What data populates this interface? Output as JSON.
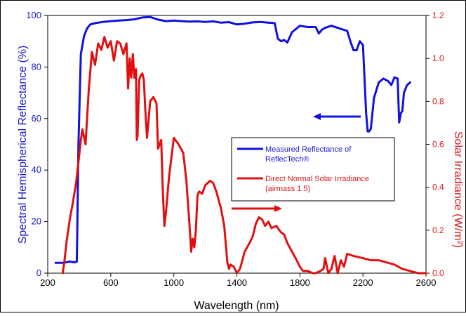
{
  "chart_data": {
    "type": "line",
    "xlabel": "Wavelength (nm)",
    "ylabel_left": "Spectral Hemispherical Reflectance (%)",
    "ylabel_right": "Solar Irradiance (W/m²)",
    "xlim": [
      200,
      2600
    ],
    "ylim_left": [
      0,
      100
    ],
    "ylim_right": [
      0,
      1.2
    ],
    "x_ticks": [
      200,
      600,
      1000,
      1400,
      1800,
      2200,
      2600
    ],
    "y_left_ticks": [
      0,
      20,
      40,
      60,
      80,
      100
    ],
    "y_right_ticks": [
      "0.0",
      "0.2",
      "0.4",
      "0.6",
      "0.8",
      "1.0",
      "1.2"
    ],
    "grid": false,
    "legend": {
      "placement": "right-center",
      "entries": [
        "Measured Reflectance of ReflecTech®",
        "Direct Normal Solar Irradiance (airmass 1.5)"
      ]
    },
    "series": [
      {
        "name": "Measured Reflectance of ReflecTech®",
        "axis": "left",
        "color": "#1010e0",
        "x": [
          250,
          300,
          340,
          370,
          385,
          395,
          410,
          430,
          450,
          470,
          500,
          550,
          600,
          650,
          700,
          750,
          800,
          850,
          900,
          950,
          1000,
          1050,
          1100,
          1150,
          1200,
          1250,
          1300,
          1350,
          1400,
          1450,
          1500,
          1550,
          1600,
          1640,
          1660,
          1680,
          1700,
          1720,
          1750,
          1800,
          1850,
          1900,
          1920,
          1940,
          1960,
          2000,
          2050,
          2100,
          2120,
          2140,
          2160,
          2180,
          2200,
          2220,
          2230,
          2240,
          2250,
          2270,
          2300,
          2330,
          2360,
          2380,
          2400,
          2420,
          2430,
          2440,
          2450,
          2460,
          2480,
          2500
        ],
        "values": [
          4,
          4,
          4.5,
          4.2,
          4.5,
          50,
          85,
          92,
          95,
          96.5,
          97,
          97.5,
          97.8,
          98,
          98.2,
          98.5,
          99.2,
          99.4,
          98.4,
          97.8,
          98,
          97.8,
          97.6,
          97.7,
          97.5,
          97.7,
          97.2,
          97.4,
          96.5,
          96.8,
          97.3,
          97.5,
          97.2,
          97,
          91,
          90,
          90.5,
          89.5,
          93.5,
          96,
          95.5,
          95.5,
          93,
          94.5,
          95.2,
          96,
          95,
          94,
          90,
          86.5,
          86.5,
          90,
          88.5,
          62,
          55,
          55,
          56,
          68,
          74,
          75.5,
          74.5,
          73,
          76,
          75.5,
          58.5,
          62,
          63,
          70,
          73,
          74
        ]
      },
      {
        "name": "Direct Normal Solar Irradiance (airmass 1.5)",
        "axis": "right",
        "color": "#e01010",
        "x": [
          295,
          305,
          320,
          340,
          360,
          380,
          400,
          410,
          420,
          440,
          460,
          480,
          500,
          520,
          540,
          560,
          580,
          600,
          620,
          640,
          660,
          680,
          700,
          710,
          720,
          730,
          740,
          750,
          760,
          765,
          770,
          780,
          790,
          800,
          810,
          820,
          830,
          850,
          870,
          890,
          900,
          920,
          930,
          940,
          950,
          970,
          1000,
          1030,
          1060,
          1080,
          1100,
          1110,
          1120,
          1130,
          1140,
          1150,
          1160,
          1180,
          1200,
          1230,
          1250,
          1270,
          1300,
          1320,
          1340,
          1350,
          1360,
          1380,
          1400,
          1420,
          1450,
          1480,
          1500,
          1520,
          1540,
          1560,
          1580,
          1600,
          1620,
          1650,
          1680,
          1700,
          1720,
          1750,
          1780,
          1800,
          1820,
          1850,
          1880,
          1900,
          1930,
          1950,
          1960,
          1980,
          2000,
          2020,
          2040,
          2060,
          2080,
          2100,
          2140,
          2200,
          2250,
          2300,
          2350,
          2400,
          2450,
          2500,
          2550,
          2600
        ],
        "values": [
          0.0,
          0.05,
          0.15,
          0.25,
          0.33,
          0.42,
          0.55,
          0.62,
          0.67,
          0.6,
          0.85,
          1.03,
          0.97,
          1.07,
          1.04,
          1.1,
          1.05,
          1.08,
          0.99,
          1.08,
          1.07,
          1.02,
          1.07,
          0.86,
          1.0,
          0.91,
          1.02,
          0.91,
          0.95,
          0.62,
          0.64,
          0.9,
          0.92,
          0.93,
          0.9,
          0.75,
          0.63,
          0.8,
          0.82,
          0.79,
          0.58,
          0.62,
          0.39,
          0.22,
          0.28,
          0.45,
          0.63,
          0.6,
          0.56,
          0.43,
          0.22,
          0.1,
          0.16,
          0.12,
          0.2,
          0.36,
          0.38,
          0.37,
          0.41,
          0.43,
          0.42,
          0.38,
          0.3,
          0.22,
          0.05,
          0.02,
          0.04,
          0.03,
          0.0,
          0.02,
          0.1,
          0.14,
          0.17,
          0.23,
          0.26,
          0.25,
          0.22,
          0.24,
          0.21,
          0.22,
          0.19,
          0.18,
          0.14,
          0.1,
          0.06,
          0.03,
          0.01,
          0.01,
          0.0,
          0.0,
          0.01,
          0.02,
          0.07,
          0.0,
          0.02,
          0.08,
          0.0,
          0.06,
          0.03,
          0.09,
          0.08,
          0.07,
          0.06,
          0.06,
          0.05,
          0.04,
          0.02,
          0.01,
          0.0,
          0.0
        ]
      }
    ],
    "annotations": [
      {
        "type": "arrow",
        "direction": "left",
        "color": "#1010e0",
        "points_to_axis": "left"
      },
      {
        "type": "arrow",
        "direction": "right",
        "color": "#e01010",
        "points_to_axis": "right"
      }
    ]
  },
  "colors": {
    "left_axis": "#1a1ad0",
    "right_axis": "#e01818",
    "frame": "#000000"
  }
}
